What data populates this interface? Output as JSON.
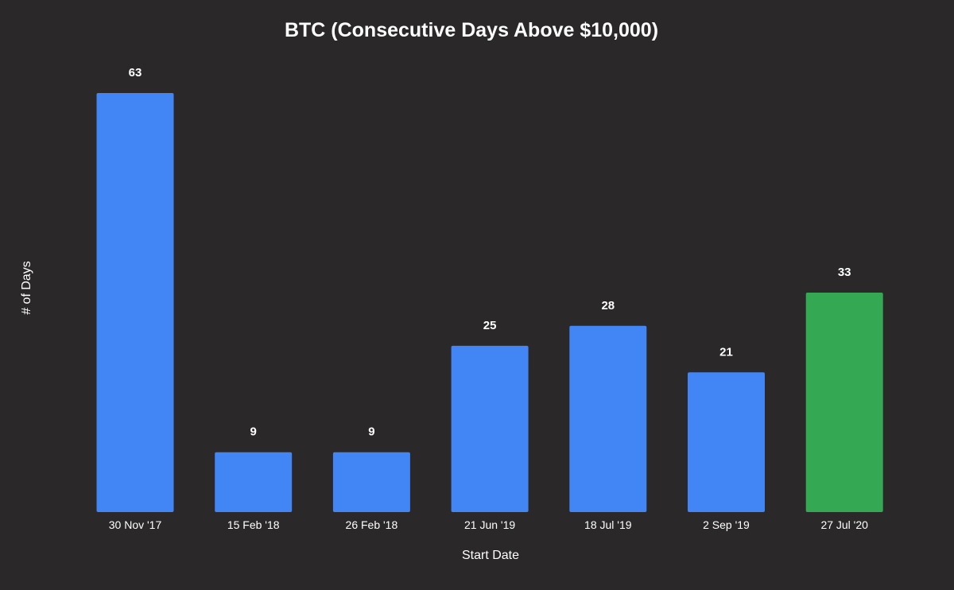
{
  "chart_data": {
    "type": "bar",
    "title": "BTC (Consecutive Days Above $10,000)",
    "xlabel": "Start Date",
    "ylabel": "# of Days",
    "categories": [
      "30 Nov '17",
      "15 Feb '18",
      "26 Feb '18",
      "21 Jun '19",
      "18 Jul '19",
      "2 Sep '19",
      "27 Jul '20"
    ],
    "values": [
      63,
      9,
      9,
      25,
      28,
      21,
      33
    ],
    "bar_colors": [
      "#4285f4",
      "#4285f4",
      "#4285f4",
      "#4285f4",
      "#4285f4",
      "#4285f4",
      "#34a853"
    ],
    "ylim": [
      0,
      63
    ],
    "grid": false,
    "legend": "none",
    "background": "#2a2829"
  }
}
